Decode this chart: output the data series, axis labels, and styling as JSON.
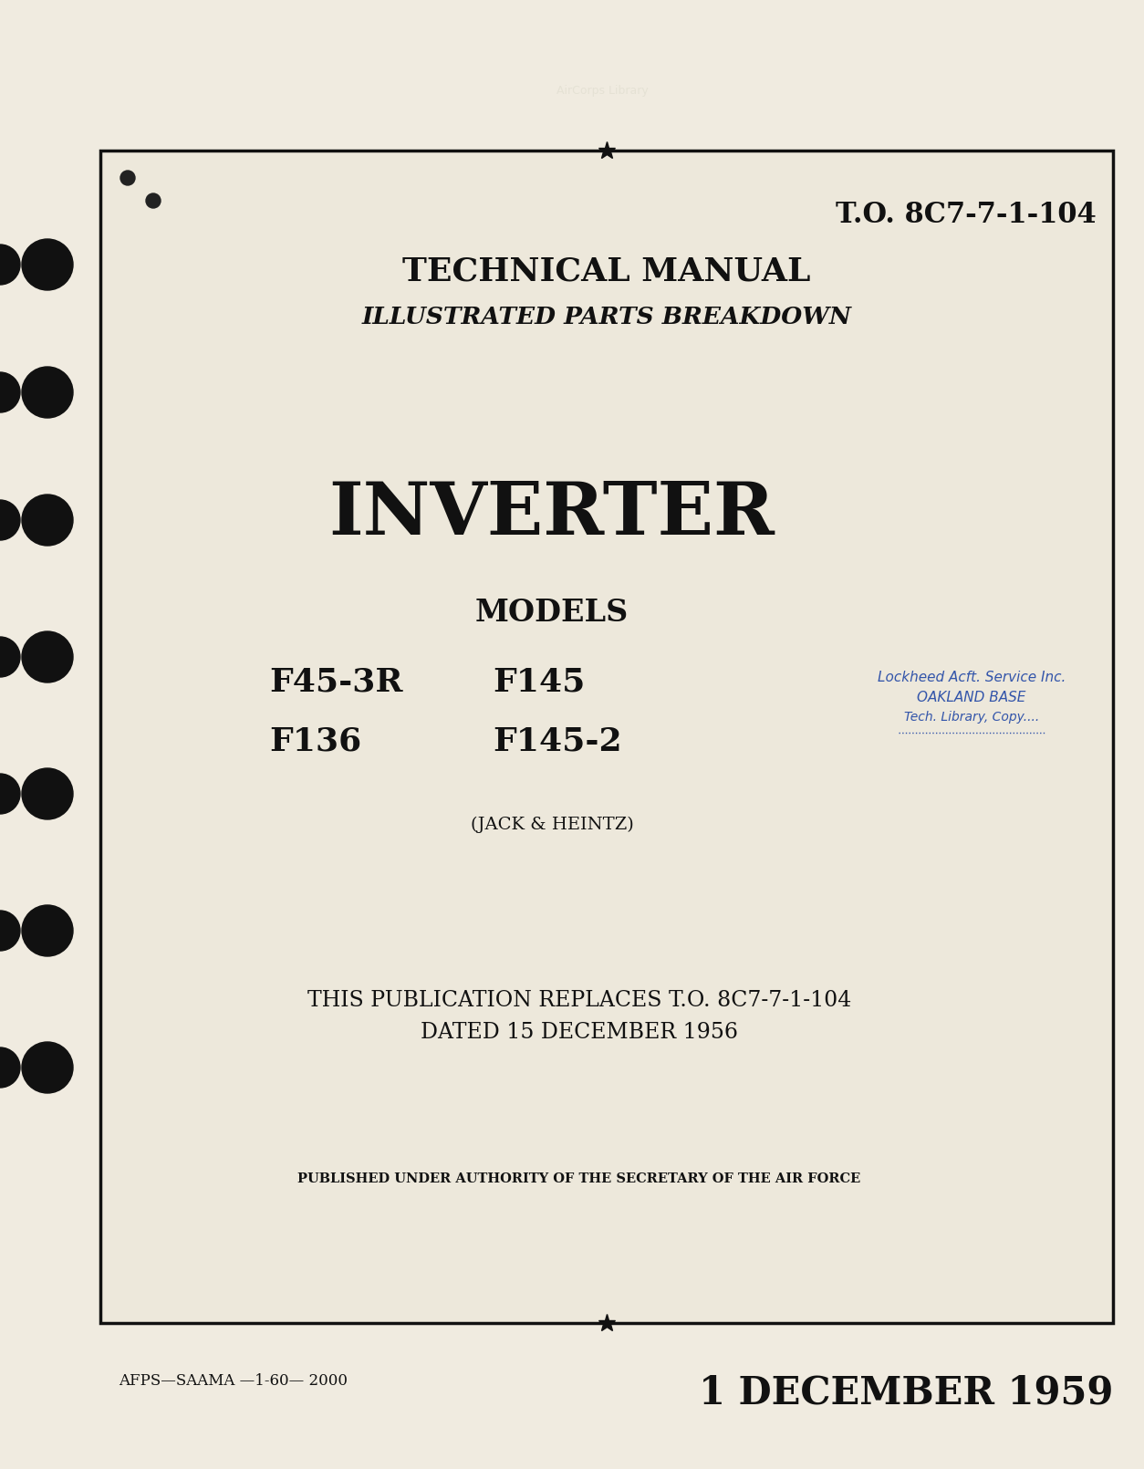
{
  "bg_color": "#f0ebe0",
  "page_bg": "#e8e0d0",
  "inner_bg": "#ede8db",
  "border_color": "#111111",
  "text_color": "#111111",
  "to_number": "T.O. 8C7-7-1-104",
  "title1": "TECHNICAL MANUAL",
  "title2": "ILLUSTRATED PARTS BREAKDOWN",
  "main_title": "INVERTER",
  "models_label": "MODELS",
  "model_col1": [
    "F45-3R",
    "F136"
  ],
  "model_col2": [
    "F145",
    "F145-2"
  ],
  "manufacturer": "(JACK & HEINTZ)",
  "replaces_line1": "THIS PUBLICATION REPLACES T.O. 8C7-7-1-104",
  "replaces_line2": "DATED 15 DECEMBER 1956",
  "authority": "PUBLISHED UNDER AUTHORITY OF THE SECRETARY OF THE AIR FORCE",
  "footer_left": "AFPS—SAAMA —1-60— 2000",
  "footer_right": "1 DECEMBER 1959",
  "stamp_lines": [
    "Lockheed Acft. Service Inc.",
    "OAKLAND BASE",
    "Tech. Library, Copy...."
  ],
  "stamp_color": "#3355aa"
}
